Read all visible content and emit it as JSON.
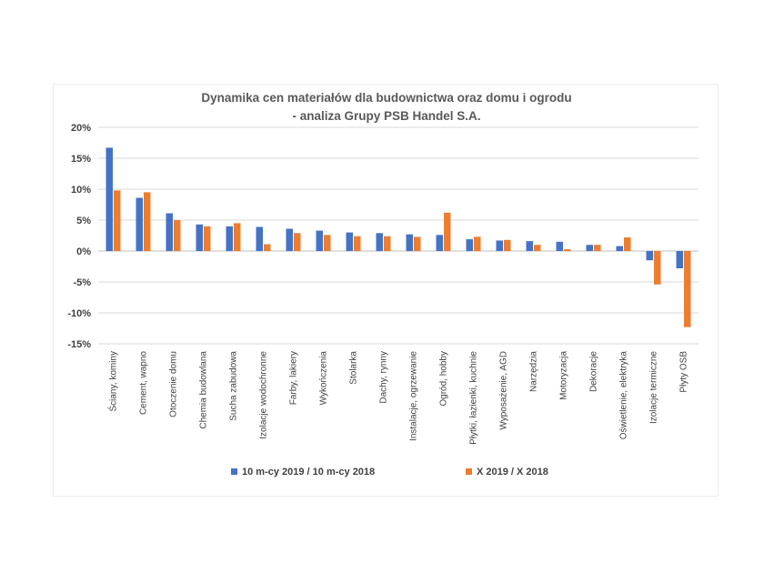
{
  "chart_data": {
    "type": "bar",
    "title": "Dynamika cen materiałów dla budownictwa oraz domu i ogrodu",
    "subtitle": "- analiza Grupy PSB Handel S.A.",
    "xlabel": "",
    "ylabel": "",
    "ylim": [
      -15,
      20
    ],
    "yticks": [
      20,
      15,
      10,
      5,
      0,
      -5,
      -10,
      -15
    ],
    "ytick_labels": [
      "20%",
      "15%",
      "10%",
      "5%",
      "0%",
      "-5%",
      "-10%",
      "-15%"
    ],
    "grid": true,
    "legend_position": "bottom",
    "categories": [
      "Ściany, kominy",
      "Cement, wapno",
      "Otoczenie domu",
      "Chemia budowlana",
      "Sucha zabudowa",
      "Izolacje wodochronne",
      "Farby, lakiery",
      "Wykończenia",
      "Stolarka",
      "Dachy, rynny",
      "Instalacje, ogrzewanie",
      "Ogród, hobby",
      "Płytki, łazienki, kuchnie",
      "Wyposażenie, AGD",
      "Narzędzia",
      "Motoryzacja",
      "Dekoracje",
      "Oświetlenie, elektryka",
      "Izolacje termiczne",
      "Płyty OSB"
    ],
    "series": [
      {
        "name": "10 m-cy 2019 / 10 m-cy 2018",
        "color": "#4472c4",
        "values": [
          16.7,
          8.6,
          6.1,
          4.3,
          4.0,
          3.9,
          3.6,
          3.3,
          3.0,
          2.9,
          2.7,
          2.6,
          1.9,
          1.7,
          1.6,
          1.5,
          1.0,
          0.8,
          -1.5,
          -2.8
        ]
      },
      {
        "name": "X 2019 / X 2018",
        "color": "#ed7d31",
        "values": [
          9.8,
          9.5,
          5.0,
          4.0,
          4.5,
          1.1,
          2.9,
          2.6,
          2.4,
          2.4,
          2.3,
          6.2,
          2.3,
          1.8,
          1.0,
          0.3,
          1.0,
          2.2,
          -5.4,
          -12.3
        ]
      }
    ]
  }
}
